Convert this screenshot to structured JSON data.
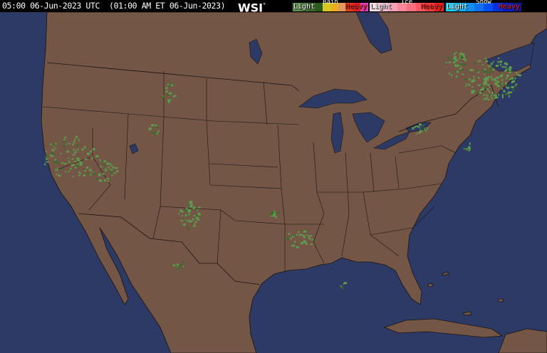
{
  "header": {
    "timestamp": "05:00 06-Jun-2023 UTC  (01:00 AM ET 06-Jun-2023)",
    "logo": "WSI",
    "logo_mark": "°"
  },
  "legend": [
    {
      "name": "Rain",
      "light": "Light",
      "heavy": "Heavy",
      "colors": [
        "#5e8f4e",
        "#4e7d3e",
        "#3a6a2a",
        "#2a5a1e",
        "#d8c820",
        "#e8b020",
        "#e09a60",
        "#e04020",
        "#e02020",
        "#e040c0"
      ]
    },
    {
      "name": "Ice",
      "light": "Light",
      "heavy": "Heavy",
      "colors": [
        "#f8e0e8",
        "#f8c0d0",
        "#f8a0b8",
        "#f88898",
        "#f87080",
        "#f85860",
        "#f04040",
        "#e82020"
      ]
    },
    {
      "name": "Snow",
      "light": "Light",
      "heavy": "Heavy",
      "colors": [
        "#20d0f0",
        "#10b0f0",
        "#1090f0",
        "#1070f0",
        "#0050f0",
        "#0030e0",
        "#0020c0",
        "#101890"
      ]
    }
  ],
  "colors": {
    "ocean": "#2d3a66",
    "land": "#735646",
    "lakes": "#2d3a66",
    "borders": "#1a1410",
    "radar_light": "#5e9a4e"
  }
}
